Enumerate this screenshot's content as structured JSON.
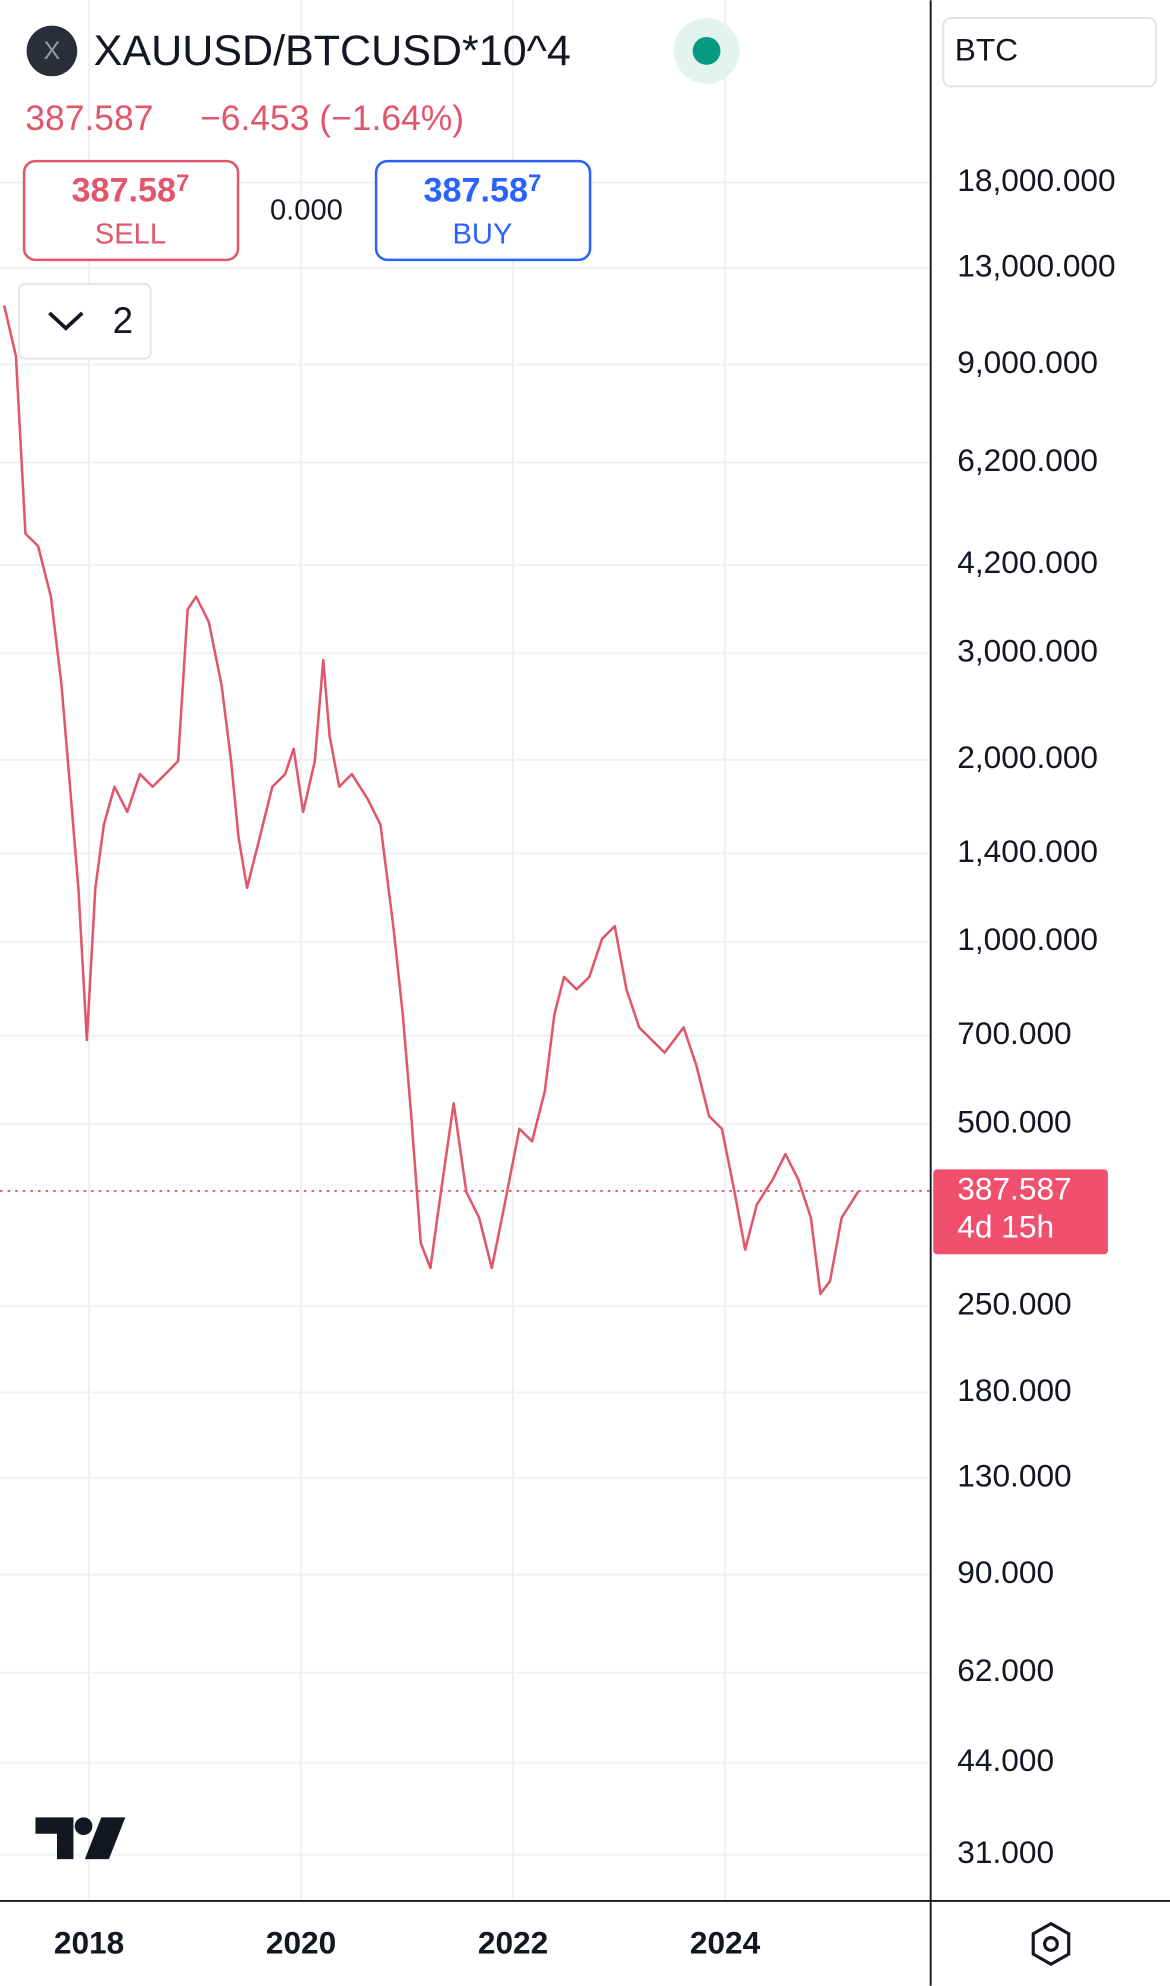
{
  "header": {
    "symbol": "XAUUSD/BTCUSD*10^4",
    "price": "387.587",
    "change": "−6.453 (−1.64%)",
    "currency": "BTC"
  },
  "trade": {
    "sell": {
      "price_main": "387.58",
      "price_pip": "7",
      "label": "SELL"
    },
    "spread": "0.000",
    "buy": {
      "price_main": "387.58",
      "price_pip": "7",
      "label": "BUY"
    }
  },
  "interval": "2",
  "chart_data": {
    "type": "line",
    "log_scale": true,
    "grid": true,
    "color": "#e0566a",
    "xlim": [
      2017.16,
      2025.94
    ],
    "xticks": [
      2018,
      2020,
      2022,
      2024
    ],
    "ylim": [
      26,
      36000
    ],
    "yticks": [
      {
        "value": 18000,
        "label": "18,000.000"
      },
      {
        "value": 13000,
        "label": "13,000.000"
      },
      {
        "value": 9000,
        "label": "9,000.000"
      },
      {
        "value": 6200,
        "label": "6,200.000"
      },
      {
        "value": 4200,
        "label": "4,200.000"
      },
      {
        "value": 3000,
        "label": "3,000.000"
      },
      {
        "value": 2000,
        "label": "2,000.000"
      },
      {
        "value": 1400,
        "label": "1,400.000"
      },
      {
        "value": 1000,
        "label": "1,000.000"
      },
      {
        "value": 700,
        "label": "700.000"
      },
      {
        "value": 500,
        "label": "500.000"
      },
      {
        "value": 250,
        "label": "250.000"
      },
      {
        "value": 180,
        "label": "180.000"
      },
      {
        "value": 130,
        "label": "130.000"
      },
      {
        "value": 90,
        "label": "90.000"
      },
      {
        "value": 62,
        "label": "62.000"
      },
      {
        "value": 44,
        "label": "44.000"
      },
      {
        "value": 31,
        "label": "31.000"
      }
    ],
    "x": [
      2017.2,
      2017.31,
      2017.4,
      2017.52,
      2017.64,
      2017.74,
      2017.82,
      2017.9,
      2017.98,
      2018.06,
      2018.14,
      2018.24,
      2018.36,
      2018.48,
      2018.6,
      2018.72,
      2018.84,
      2018.93,
      2019.01,
      2019.13,
      2019.25,
      2019.34,
      2019.41,
      2019.49,
      2019.61,
      2019.73,
      2019.85,
      2019.93,
      2020.02,
      2020.13,
      2020.21,
      2020.27,
      2020.36,
      2020.48,
      2020.63,
      2020.75,
      2020.87,
      2020.96,
      2021.04,
      2021.13,
      2021.22,
      2021.32,
      2021.44,
      2021.56,
      2021.68,
      2021.8,
      2021.92,
      2022.06,
      2022.18,
      2022.3,
      2022.39,
      2022.48,
      2022.6,
      2022.72,
      2022.84,
      2022.96,
      2023.07,
      2023.19,
      2023.31,
      2023.43,
      2023.61,
      2023.73,
      2023.85,
      2023.97,
      2024.09,
      2024.19,
      2024.3,
      2024.45,
      2024.57,
      2024.69,
      2024.81,
      2024.9,
      2024.99,
      2025.1,
      2025.26
    ],
    "values": [
      11270,
      9290,
      4730,
      4510,
      3720,
      2655,
      1805,
      1228,
      688,
      1228,
      1561,
      1805,
      1640,
      1894,
      1805,
      1894,
      1989,
      3544,
      3720,
      3378,
      2655,
      1989,
      1488,
      1228,
      1488,
      1805,
      1894,
      2086,
      1640,
      1989,
      2923,
      2189,
      1805,
      1894,
      1721,
      1561,
      1062,
      758,
      515,
      318,
      289,
      386,
      541,
      386,
      350,
      289,
      368,
      491,
      468,
      567,
      758,
      875,
      835,
      875,
      1012,
      1062,
      835,
      722,
      688,
      656,
      722,
      624,
      515,
      491,
      386,
      310,
      368,
      405,
      446,
      405,
      350,
      262,
      275,
      350,
      387.587
    ],
    "last_price": 387.587,
    "countdown": "4d 15h"
  }
}
